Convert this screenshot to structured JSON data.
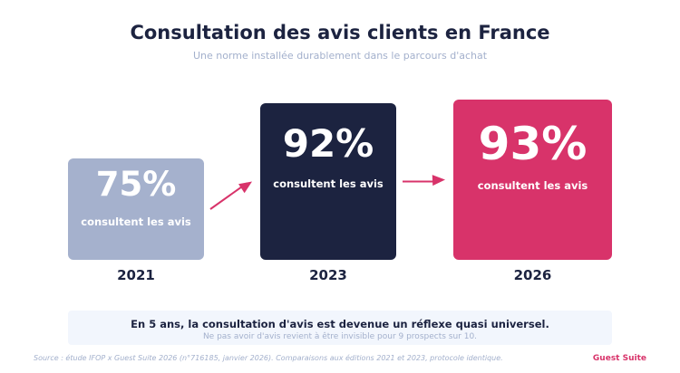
{
  "header": {
    "title": "Consultation des avis clients en France",
    "subtitle": "Une norme installée durablement dans le parcours d'achat"
  },
  "chart_data": {
    "type": "bar",
    "categories": [
      "2021",
      "2023",
      "2026"
    ],
    "values": [
      75,
      92,
      93
    ],
    "value_labels": [
      "75%",
      "92%",
      "93%"
    ],
    "bar_label": "consultent les avis",
    "colors": [
      "#a5b1cd",
      "#1c2340",
      "#d8336a"
    ],
    "title": "Consultation des avis clients en France",
    "subtitle": "Une norme installée durablement dans le parcours d'achat",
    "xlabel": "",
    "ylabel": "",
    "arrow_color": "#d8336a",
    "grid": false
  },
  "callout": {
    "main": "En 5 ans, la consultation d'avis est devenue un réflexe quasi universel.",
    "sub": "Ne pas avoir d'avis revient à être invisible pour 9 prospects sur 10."
  },
  "footer": {
    "source": "Source : étude IFOP x Guest Suite 2026 (n°716185, janvier 2026). Comparaisons aux éditions 2021 et 2023, protocole identique.",
    "brand": "Guest Suite"
  }
}
